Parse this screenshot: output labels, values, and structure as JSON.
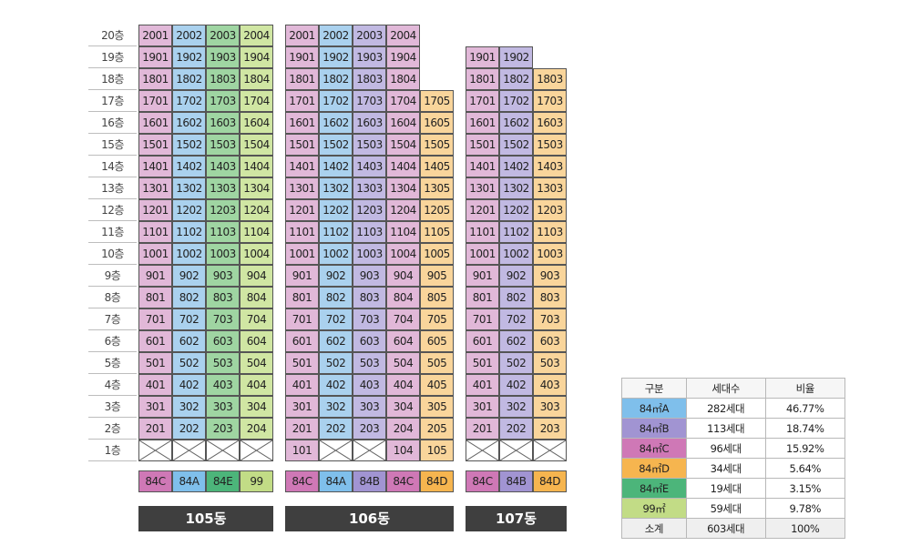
{
  "colors": {
    "84A": "#aad1ee",
    "84B": "#c1b9e2",
    "84C": "#e1b8d8",
    "84D": "#f9d59b",
    "84E": "#9fd5a2",
    "99": "#d0e6a3",
    "84A_legend": "#7fbfeb",
    "84B_legend": "#a194d2",
    "84C_legend": "#cf78b6",
    "84D_legend": "#f6b54f",
    "84E_legend": "#4cb57a",
    "99_legend": "#c2dc86"
  },
  "floors": [
    "20층",
    "19층",
    "18층",
    "17층",
    "16층",
    "15층",
    "14층",
    "13층",
    "12층",
    "11층",
    "10층",
    "9층",
    "8층",
    "7층",
    "6층",
    "5층",
    "4층",
    "3층",
    "2층",
    "1층"
  ],
  "buildings": [
    {
      "name": "105동",
      "lines": [
        {
          "type": "84C",
          "type_label": "84C",
          "top_floor": 20,
          "first_floor_unit": null
        },
        {
          "type": "84A",
          "type_label": "84A",
          "top_floor": 20,
          "first_floor_unit": null
        },
        {
          "type": "84E",
          "type_label": "84E",
          "top_floor": 20,
          "first_floor_unit": null
        },
        {
          "type": "99",
          "type_label": "99",
          "top_floor": 20,
          "first_floor_unit": null
        }
      ]
    },
    {
      "name": "106동",
      "lines": [
        {
          "type": "84C",
          "type_label": "84C",
          "top_floor": 20,
          "first_floor_unit": "101"
        },
        {
          "type": "84A",
          "type_label": "84A",
          "top_floor": 20,
          "first_floor_unit": null
        },
        {
          "type": "84B",
          "type_label": "84B",
          "top_floor": 20,
          "first_floor_unit": null
        },
        {
          "type": "84C",
          "type_label": "84C",
          "top_floor": 20,
          "first_floor_unit": "104"
        },
        {
          "type": "84D",
          "type_label": "84D",
          "top_floor": 17,
          "first_floor_unit": "105"
        }
      ]
    },
    {
      "name": "107동",
      "lines": [
        {
          "type": "84C",
          "type_label": "84C",
          "top_floor": 19,
          "first_floor_unit": null
        },
        {
          "type": "84B",
          "type_label": "84B",
          "top_floor": 19,
          "first_floor_unit": null
        },
        {
          "type": "84D",
          "type_label": "84D",
          "top_floor": 18,
          "first_floor_unit": null
        }
      ]
    }
  ],
  "legend": {
    "headers": [
      "구분",
      "세대수",
      "비율"
    ],
    "rows": [
      {
        "type": "84A",
        "label": "84㎡A",
        "count": "282세대",
        "ratio": "46.77%"
      },
      {
        "type": "84B",
        "label": "84㎡B",
        "count": "113세대",
        "ratio": "18.74%"
      },
      {
        "type": "84C",
        "label": "84㎡C",
        "count": "96세대",
        "ratio": "15.92%"
      },
      {
        "type": "84D",
        "label": "84㎡D",
        "count": "34세대",
        "ratio": "5.64%"
      },
      {
        "type": "84E",
        "label": "84㎡E",
        "count": "19세대",
        "ratio": "3.15%"
      },
      {
        "type": "99",
        "label": "99㎡",
        "count": "59세대",
        "ratio": "9.78%"
      }
    ],
    "total": {
      "label": "소계",
      "count": "603세대",
      "ratio": "100%"
    }
  }
}
